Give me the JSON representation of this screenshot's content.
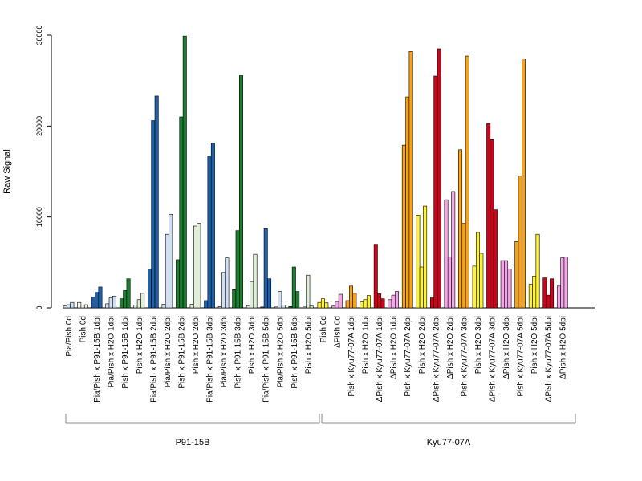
{
  "chart_data": {
    "type": "bar",
    "ylabel": "Raw Signal",
    "ylim": [
      0,
      30000
    ],
    "yticks": [
      0,
      10000,
      20000,
      30000
    ],
    "ytick_labels": [
      "0",
      "10000",
      "20000",
      "30000"
    ],
    "groups": [
      {
        "label": "P91-15B",
        "categories": [
          {
            "label": "Pia/Pish 0d",
            "color": "#d0e0f2",
            "values": [
              200,
              350,
              600
            ]
          },
          {
            "label": "Pish 0d",
            "color": "#f5f5f0",
            "values": [
              600,
              300,
              350
            ]
          },
          {
            "label": "Pia/Pish x P91-15B 1dpi",
            "color": "#2060a8",
            "values": [
              1200,
              1700,
              2300
            ]
          },
          {
            "label": "Pia/Pish x H2O 1dpi",
            "color": "#d0e0f2",
            "values": [
              450,
              1100,
              1300
            ]
          },
          {
            "label": "Pish x P91-15B 1dpi",
            "color": "#1e7d32",
            "values": [
              1000,
              1900,
              3200
            ]
          },
          {
            "label": "Pish x H2O 1dpi",
            "color": "#e0f0d8",
            "values": [
              300,
              900,
              1600
            ]
          },
          {
            "label": "Pia/Pish x P91-15B 2dpi",
            "color": "#2060a8",
            "values": [
              4300,
              20600,
              23300
            ]
          },
          {
            "label": "Pia/Pish x H2O 2dpi",
            "color": "#d0e0f2",
            "values": [
              400,
              8100,
              10300
            ]
          },
          {
            "label": "Pish x P91-15B 2dpi",
            "color": "#1e7d32",
            "values": [
              5300,
              21000,
              29900
            ]
          },
          {
            "label": "Pish x H2O 2dpi",
            "color": "#e0f0d8",
            "values": [
              400,
              9000,
              9300
            ]
          },
          {
            "label": "Pia/Pish x P91-15B 3dpi",
            "color": "#2060a8",
            "values": [
              800,
              16700,
              18100
            ]
          },
          {
            "label": "Pia/Pish x H2O 3dpi",
            "color": "#d0e0f2",
            "values": [
              150,
              3900,
              5500
            ]
          },
          {
            "label": "Pish x P91-15B 3dpi",
            "color": "#1e7d32",
            "values": [
              2000,
              8500,
              25600
            ]
          },
          {
            "label": "Pish x H2O 3dpi",
            "color": "#e0f0d8",
            "values": [
              250,
              2900,
              5900
            ]
          },
          {
            "label": "Pia/Pish x P91-15B 5dpi",
            "color": "#2060a8",
            "values": [
              100,
              8700,
              3200
            ]
          },
          {
            "label": "Pia/Pish x H2O 5dpi",
            "color": "#d0e0f2",
            "values": [
              100,
              1800,
              300
            ]
          },
          {
            "label": "Pish x P91-15B 5dpi",
            "color": "#1e7d32",
            "values": [
              150,
              4500,
              1800
            ]
          },
          {
            "label": "Pish x H2O 5dpi",
            "color": "#e0f0d8",
            "values": [
              100,
              3600,
              200
            ]
          }
        ]
      },
      {
        "label": "Kyu77-07A",
        "categories": [
          {
            "label": "Pish 0d",
            "color": "#fff23a",
            "values": [
              600,
              1000,
              550
            ]
          },
          {
            "label": "ΔPish 0d",
            "color": "#f4a8e8",
            "values": [
              200,
              700,
              1500
            ]
          },
          {
            "label": "Pish x Kyu77-07A 1dpi",
            "color": "#f5a31a",
            "values": [
              800,
              2400,
              1600
            ]
          },
          {
            "label": "Pish x H2O 1dpi",
            "color": "#fff23a",
            "values": [
              650,
              900,
              1350
            ]
          },
          {
            "label": "ΔPish x Kyu77-07A 1dpi",
            "color": "#d0001a",
            "values": [
              7000,
              1550,
              1000
            ]
          },
          {
            "label": "ΔPish x H2O 1dpi",
            "color": "#f4a8e8",
            "values": [
              900,
              1400,
              1800
            ]
          },
          {
            "label": "Pish x Kyu77-07A 2dpi",
            "color": "#f5a31a",
            "values": [
              17900,
              23200,
              28200
            ]
          },
          {
            "label": "Pish x H2O 2dpi",
            "color": "#fff23a",
            "values": [
              10200,
              4500,
              11200
            ]
          },
          {
            "label": "ΔPish x Kyu77-07A 2dpi",
            "color": "#d0001a",
            "values": [
              1100,
              25500,
              28500
            ]
          },
          {
            "label": "ΔPish x H2O 2dpi",
            "color": "#f4a8e8",
            "values": [
              11900,
              5600,
              12800
            ]
          },
          {
            "label": "Pish x Kyu77-07A 3dpi",
            "color": "#f5a31a",
            "values": [
              17400,
              9300,
              27700
            ]
          },
          {
            "label": "Pish x H2O 3dpi",
            "color": "#fff23a",
            "values": [
              4600,
              8300,
              6000
            ]
          },
          {
            "label": "ΔPish x Kyu77-07A 3dpi",
            "color": "#d0001a",
            "values": [
              20300,
              18500,
              10800
            ]
          },
          {
            "label": "ΔPish x H2O 3dpi",
            "color": "#f4a8e8",
            "values": [
              5200,
              5200,
              4300
            ]
          },
          {
            "label": "Pish x Kyu77-07A 5dpi",
            "color": "#f5a31a",
            "values": [
              7300,
              14500,
              27400
            ]
          },
          {
            "label": "Pish x H2O 5dpi",
            "color": "#fff23a",
            "values": [
              2600,
              3500,
              8100
            ]
          },
          {
            "label": "ΔPish x Kyu77-07A 5dpi",
            "color": "#d0001a",
            "values": [
              3300,
              1400,
              3200
            ]
          },
          {
            "label": "ΔPish x H2O 5dpi",
            "color": "#f4a8e8",
            "values": [
              2400,
              5500,
              5600
            ]
          }
        ]
      }
    ]
  }
}
